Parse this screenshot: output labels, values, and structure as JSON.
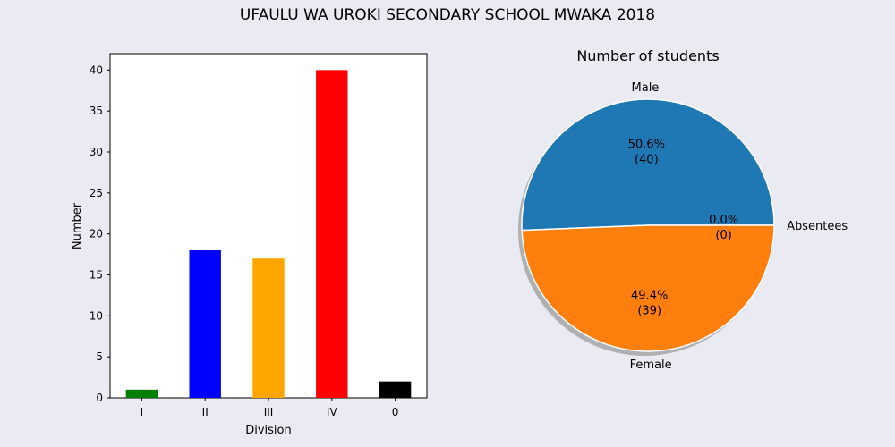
{
  "figure_title": "UFAULU WA UROKI SECONDARY SCHOOL MWAKA 2018",
  "chart_data": [
    {
      "type": "bar",
      "title": "",
      "xlabel": "Division",
      "ylabel": "Number",
      "categories": [
        "I",
        "II",
        "III",
        "IV",
        "0"
      ],
      "values": [
        1,
        18,
        17,
        40,
        2
      ],
      "colors": [
        "#008000",
        "#0000ff",
        "#ffa500",
        "#ff0000",
        "#000000"
      ],
      "ylim": [
        0,
        42
      ],
      "yticks": [
        0,
        5,
        10,
        15,
        20,
        25,
        30,
        35,
        40
      ],
      "grid": false,
      "legend": "none"
    },
    {
      "type": "pie",
      "title": "Number of students",
      "labels": [
        "Male",
        "Female",
        "Absentees"
      ],
      "values": [
        40,
        39,
        0
      ],
      "autopct_labels": [
        "50.6%\n(40)",
        "49.4%\n(39)",
        "0.0%\n(0)"
      ],
      "colors": [
        "#1f77b4",
        "#ff7f0e",
        "#2ca02c"
      ],
      "shadow": true,
      "start_angle_deg": 0,
      "legend": "none"
    }
  ]
}
